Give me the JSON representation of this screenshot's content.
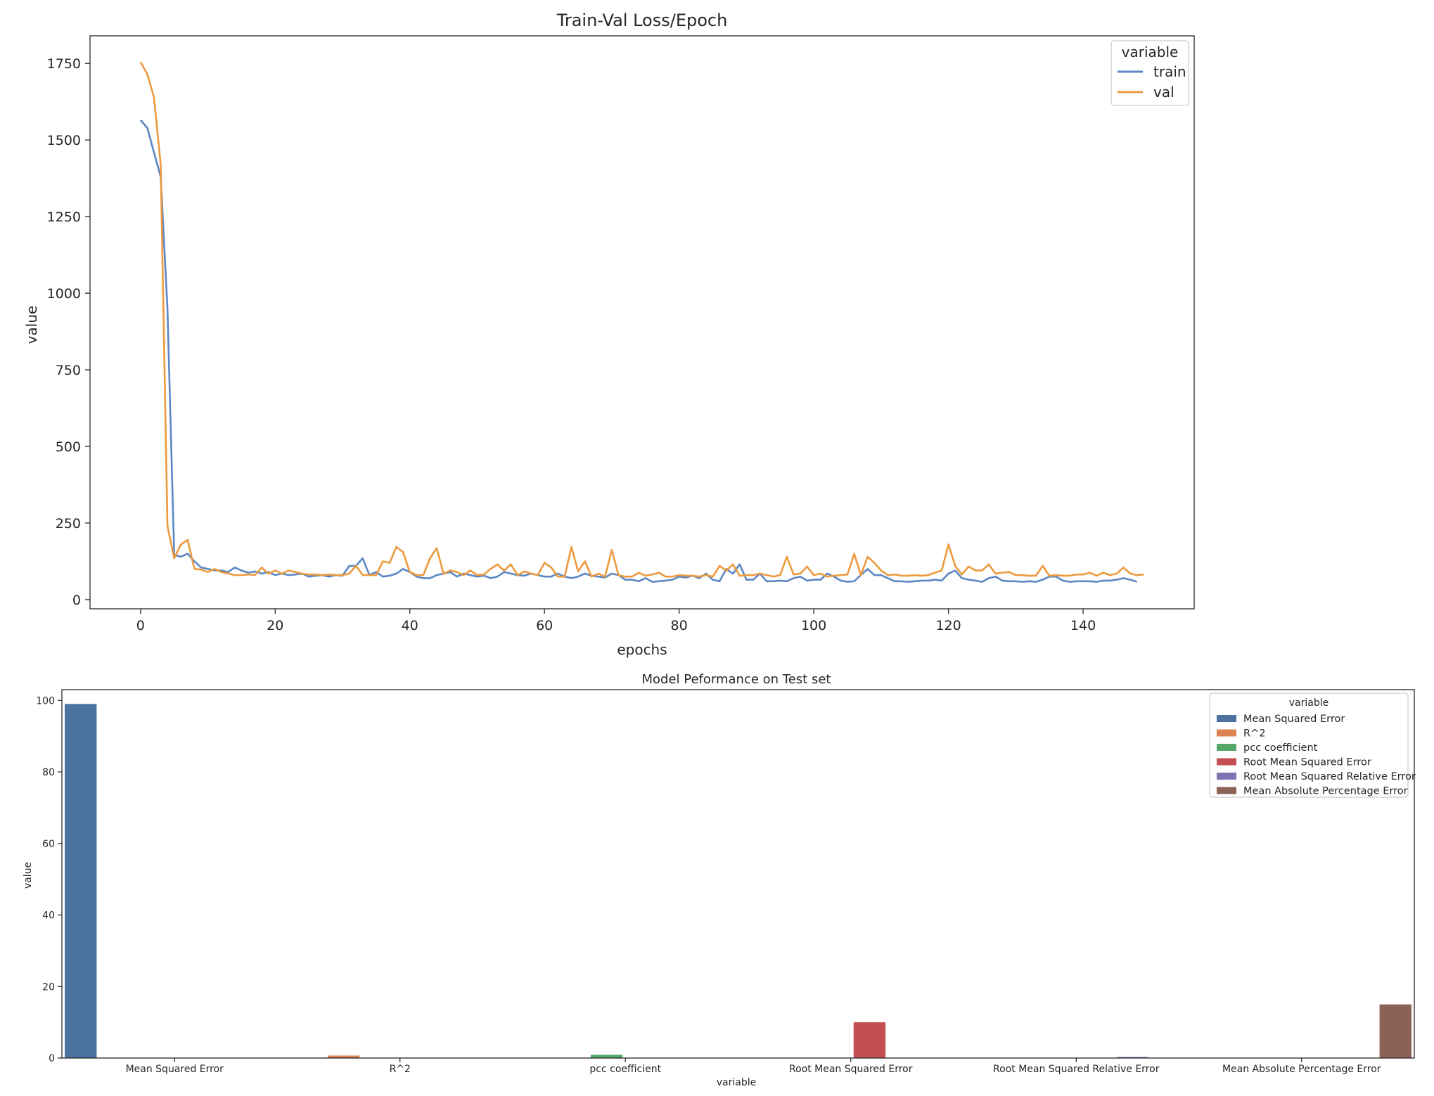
{
  "chart_data": [
    {
      "type": "line",
      "title": "Train-Val Loss/Epoch",
      "xlabel": "epochs",
      "ylabel": "value",
      "xlim": [
        -7.5,
        156.5
      ],
      "ylim": [
        -30,
        1840
      ],
      "xticks": [
        0,
        20,
        40,
        60,
        80,
        100,
        120,
        140
      ],
      "xtick_labels": [
        "0",
        "20",
        "40",
        "60",
        "80",
        "100",
        "120",
        "140"
      ],
      "yticks": [
        0,
        250,
        500,
        750,
        1000,
        1250,
        1500,
        1750
      ],
      "ytick_labels": [
        "0",
        "250",
        "500",
        "750",
        "1000",
        "1250",
        "1500",
        "1750"
      ],
      "grid": false,
      "legend": {
        "title": "variable",
        "placement": "top-right"
      },
      "series": [
        {
          "name": "train",
          "color": "#5b87c5",
          "values": [
            1565,
            1540,
            1460,
            1380,
            950,
            145,
            140,
            150,
            125,
            105,
            100,
            95,
            95,
            90,
            105,
            95,
            88,
            92,
            85,
            90,
            80,
            85,
            80,
            82,
            85,
            75,
            78,
            80,
            75,
            80,
            78,
            110,
            110,
            135,
            80,
            90,
            75,
            78,
            85,
            100,
            90,
            75,
            70,
            70,
            80,
            85,
            90,
            75,
            85,
            80,
            75,
            78,
            70,
            75,
            90,
            85,
            80,
            78,
            85,
            80,
            75,
            75,
            85,
            75,
            70,
            75,
            85,
            78,
            75,
            72,
            85,
            80,
            65,
            65,
            60,
            70,
            58,
            60,
            62,
            65,
            75,
            72,
            78,
            70,
            85,
            65,
            60,
            100,
            85,
            115,
            65,
            65,
            85,
            60,
            60,
            62,
            60,
            70,
            75,
            62,
            65,
            65,
            85,
            75,
            62,
            58,
            60,
            80,
            100,
            80,
            80,
            70,
            60,
            60,
            58,
            60,
            62,
            62,
            65,
            62,
            85,
            95,
            70,
            65,
            62,
            58,
            70,
            75,
            62,
            60,
            60,
            58,
            60,
            58,
            65,
            75,
            75,
            62,
            58,
            60,
            60,
            60,
            58,
            62,
            62,
            65,
            70,
            65,
            58
          ]
        },
        {
          "name": "val",
          "color": "#ec9a3d",
          "values": [
            1755,
            1715,
            1640,
            1420,
            240,
            135,
            180,
            195,
            100,
            98,
            90,
            100,
            90,
            85,
            80,
            80,
            82,
            80,
            105,
            85,
            95,
            85,
            95,
            90,
            85,
            82,
            82,
            80,
            82,
            80,
            80,
            85,
            110,
            80,
            80,
            80,
            125,
            120,
            172,
            155,
            90,
            80,
            80,
            135,
            168,
            85,
            95,
            90,
            80,
            95,
            80,
            82,
            100,
            115,
            95,
            115,
            80,
            92,
            85,
            80,
            120,
            105,
            75,
            75,
            172,
            92,
            125,
            75,
            85,
            75,
            162,
            80,
            75,
            75,
            88,
            78,
            82,
            88,
            75,
            75,
            80,
            78,
            78,
            75,
            80,
            75,
            110,
            95,
            115,
            78,
            80,
            80,
            85,
            80,
            75,
            80,
            140,
            82,
            85,
            108,
            80,
            85,
            75,
            78,
            80,
            82,
            150,
            80,
            140,
            120,
            95,
            80,
            82,
            78,
            78,
            80,
            78,
            80,
            88,
            95,
            180,
            110,
            82,
            108,
            95,
            95,
            115,
            85,
            88,
            90,
            80,
            80,
            78,
            78,
            110,
            78,
            80,
            78,
            78,
            82,
            82,
            88,
            78,
            88,
            80,
            85,
            105,
            85,
            80,
            82
          ]
        }
      ]
    },
    {
      "type": "bar",
      "title": "Model Peformance on Test set",
      "xlabel": "variable",
      "ylabel": "value",
      "ylim": [
        0,
        103
      ],
      "yticks": [
        0,
        20,
        40,
        60,
        80,
        100
      ],
      "ytick_labels": [
        "0",
        "20",
        "40",
        "60",
        "80",
        "100"
      ],
      "grid": false,
      "legend": {
        "title": "variable",
        "placement": "top-right"
      },
      "categories": [
        "Mean Squared Error",
        "R^2",
        "pcc coefficient",
        "Root Mean Squared Error",
        "Root Mean Squared Relative Error",
        "Mean Absolute Percentage Error"
      ],
      "values": [
        99,
        0.7,
        0.9,
        10,
        0.3,
        15
      ],
      "colors": [
        "#4c72a0",
        "#dd8452",
        "#55a868",
        "#c44e52",
        "#8172b3",
        "#8c6257"
      ]
    }
  ]
}
